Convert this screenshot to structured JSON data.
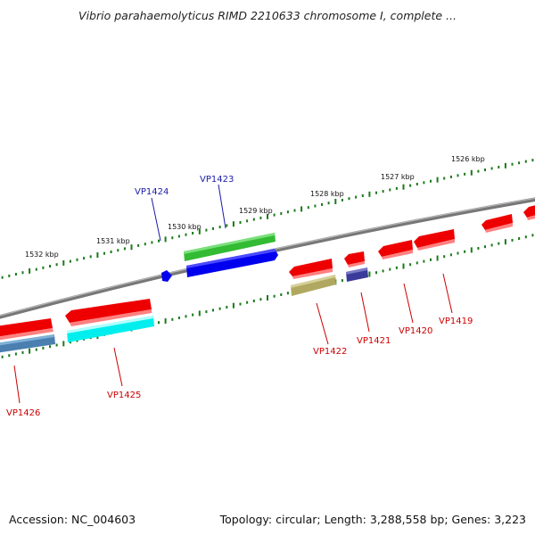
{
  "title": "Vibrio parahaemolyticus RIMD 2210633 chromosome I, complete ...",
  "footer": {
    "accession": "Accession: NC_004603",
    "summary": "Topology: circular; Length: 3,288,558 bp; Genes: 3,223"
  },
  "scale": {
    "upper": [
      "1532 kbp",
      "1531 kbp",
      "1530 kbp",
      "1529 kbp",
      "1528 kbp",
      "1527 kbp",
      "1526 kbp"
    ]
  },
  "genes": {
    "forward": [
      "VP1424",
      "VP1423"
    ],
    "reverse": [
      "VP1426",
      "VP1425",
      "VP1422",
      "VP1421",
      "VP1420",
      "VP1419"
    ]
  },
  "colors": {
    "backbone": "#888888",
    "tick": "#1a7a1a",
    "forward_label": "#1a1aa8",
    "reverse_label": "#cc0000",
    "red": "#ee0000",
    "green": "#33bb33",
    "blue": "#0000ee",
    "navy": "#3a3a9a",
    "olive": "#b0a860",
    "cyan": "#00eeee",
    "steel": "#4a7fb0"
  }
}
